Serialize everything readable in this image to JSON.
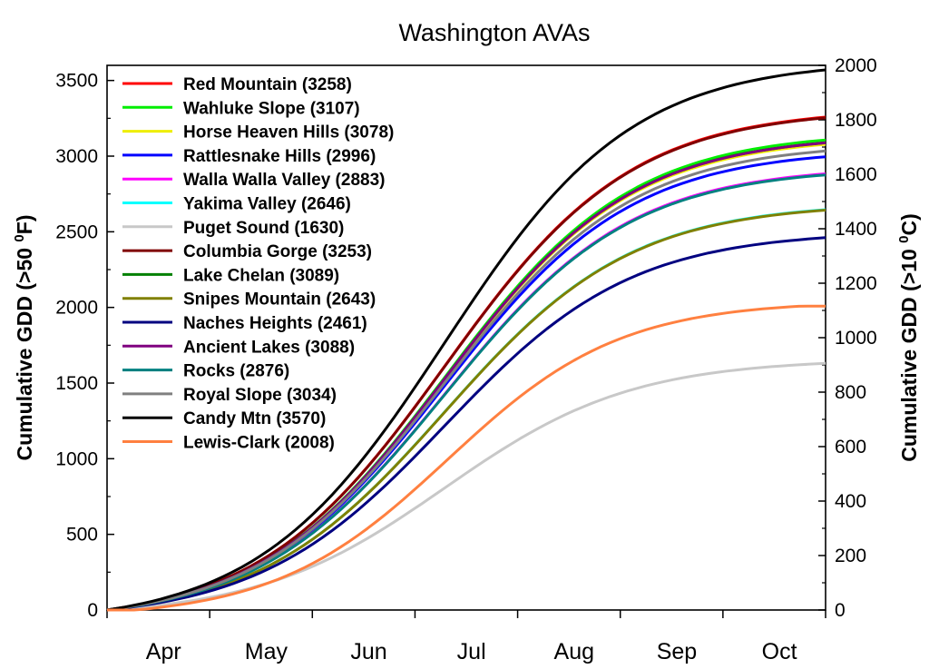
{
  "chart_data": {
    "type": "line",
    "title": "Washington AVAs",
    "ylabel_left": "Cumulative GDD (>50 ",
    "ylabel_left_sup": "0",
    "ylabel_left_end": "F)",
    "ylabel_right": "Cumulative GDD (>10 ",
    "ylabel_right_sup": "0",
    "ylabel_right_end": "C)",
    "ylim_left": [
      0,
      3600
    ],
    "ylim_right": [
      0,
      2000
    ],
    "yticks_left": [
      "0",
      "500",
      "1000",
      "1500",
      "2000",
      "2500",
      "3000",
      "3500"
    ],
    "yticks_right": [
      "0",
      "200",
      "400",
      "600",
      "800",
      "1000",
      "1200",
      "1400",
      "1600",
      "1800",
      "2000"
    ],
    "x_months": [
      "Apr",
      "May",
      "Jun",
      "Jul",
      "Aug",
      "Sep",
      "Oct"
    ],
    "legend_position": "top-left",
    "grid": false,
    "series": [
      {
        "name": "Red Mountain (3258)",
        "color": "#ff0000",
        "final": 3258
      },
      {
        "name": "Wahluke Slope (3107)",
        "color": "#00ee00",
        "final": 3107
      },
      {
        "name": "Horse Heaven Hills (3078)",
        "color": "#eeee00",
        "final": 3078
      },
      {
        "name": "Rattlesnake Hills (2996)",
        "color": "#0000ff",
        "final": 2996
      },
      {
        "name": "Walla Walla Valley (2883)",
        "color": "#ff00ff",
        "final": 2883
      },
      {
        "name": "Yakima Valley (2646)",
        "color": "#00ffff",
        "final": 2646
      },
      {
        "name": "Puget Sound (1630)",
        "color": "#c8c8c8",
        "final": 1630
      },
      {
        "name": "Columbia Gorge (3253)",
        "color": "#800000",
        "final": 3253
      },
      {
        "name": "Lake Chelan (3089)",
        "color": "#008000",
        "final": 3089
      },
      {
        "name": "Snipes Mountain (2643)",
        "color": "#808000",
        "final": 2643
      },
      {
        "name": "Naches Heights (2461)",
        "color": "#000080",
        "final": 2461
      },
      {
        "name": "Ancient Lakes (3088)",
        "color": "#800080",
        "final": 3088
      },
      {
        "name": "Rocks (2876)",
        "color": "#008080",
        "final": 2876
      },
      {
        "name": "Royal Slope (3034)",
        "color": "#808080",
        "final": 3034
      },
      {
        "name": "Candy Mtn (3570)",
        "color": "#000000",
        "final": 3570
      },
      {
        "name": "Lewis-Clark (2008)",
        "color": "#ff8040",
        "final": 2008
      }
    ]
  }
}
